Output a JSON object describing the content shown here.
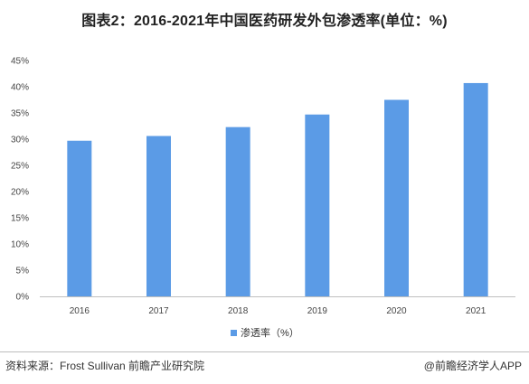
{
  "title": "图表2：2016-2021年中国医药研发外包渗透率(单位：%)",
  "source": "资料来源：Frost Sullivan 前瞻产业研究院",
  "credit": "@前瞻经济学人APP",
  "watermark": "前瞻产业研究院",
  "colors": {
    "bar": "#5b9be6",
    "axis": "#bfbfbf"
  },
  "chart_data": {
    "type": "bar",
    "title": "图表2：2016-2021年中国医药研发外包渗透率(单位：%)",
    "categories": [
      "2016",
      "2017",
      "2018",
      "2019",
      "2020",
      "2021"
    ],
    "series": [
      {
        "name": "渗透率（%）",
        "values": [
          29.7,
          30.6,
          32.3,
          34.7,
          37.5,
          40.7
        ]
      }
    ],
    "yticks": [
      "0%",
      "5%",
      "10%",
      "15%",
      "20%",
      "25%",
      "30%",
      "35%",
      "40%",
      "45%"
    ],
    "ylim": [
      0,
      45
    ],
    "xlabel": "",
    "ylabel": "",
    "grid": false,
    "legend": "bottom-center"
  }
}
